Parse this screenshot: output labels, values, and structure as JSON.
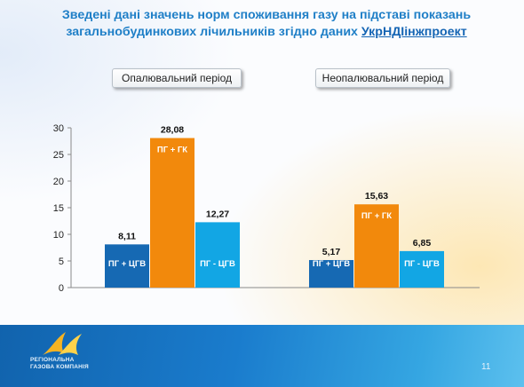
{
  "title": {
    "line1": "Зведені дані значень норм споживання газу на підставі показань",
    "line2_text": "загальнобудинкових лічильників згідно даних ",
    "line2_link": "УкрНДІінжпроект"
  },
  "periods": {
    "heating": "Опалювальний період",
    "nonheating": "Неопалювальний період"
  },
  "colors": {
    "dark_blue": "#1669b3",
    "orange": "#f2890c",
    "light_blue": "#12a6e4",
    "title": "#1f7fc7",
    "footer": "#1a7ccd"
  },
  "chart_data": {
    "type": "bar",
    "ylim": [
      0,
      30
    ],
    "yticks": [
      0,
      5,
      10,
      15,
      20,
      25,
      30
    ],
    "groups": [
      "Опалювальний період",
      "Неопалювальний період"
    ],
    "series": [
      {
        "name": "ПГ + ЦГВ",
        "color": "#1669b3",
        "values": [
          8.11,
          5.17
        ],
        "labels": [
          "8,11",
          "5,17"
        ]
      },
      {
        "name": "ПГ + ГК",
        "color": "#f2890c",
        "values": [
          28.08,
          15.63
        ],
        "labels": [
          "28,08",
          "15,63"
        ]
      },
      {
        "name": "ПГ - ЦГВ",
        "color": "#12a6e4",
        "values": [
          12.27,
          6.85
        ],
        "labels": [
          "12,27",
          "6,85"
        ]
      }
    ]
  },
  "footer": {
    "logo_line1": "РЕГІОНАЛЬНА",
    "logo_line2": "ГАЗОВА КОМПАНІЯ",
    "page_number": "11"
  }
}
